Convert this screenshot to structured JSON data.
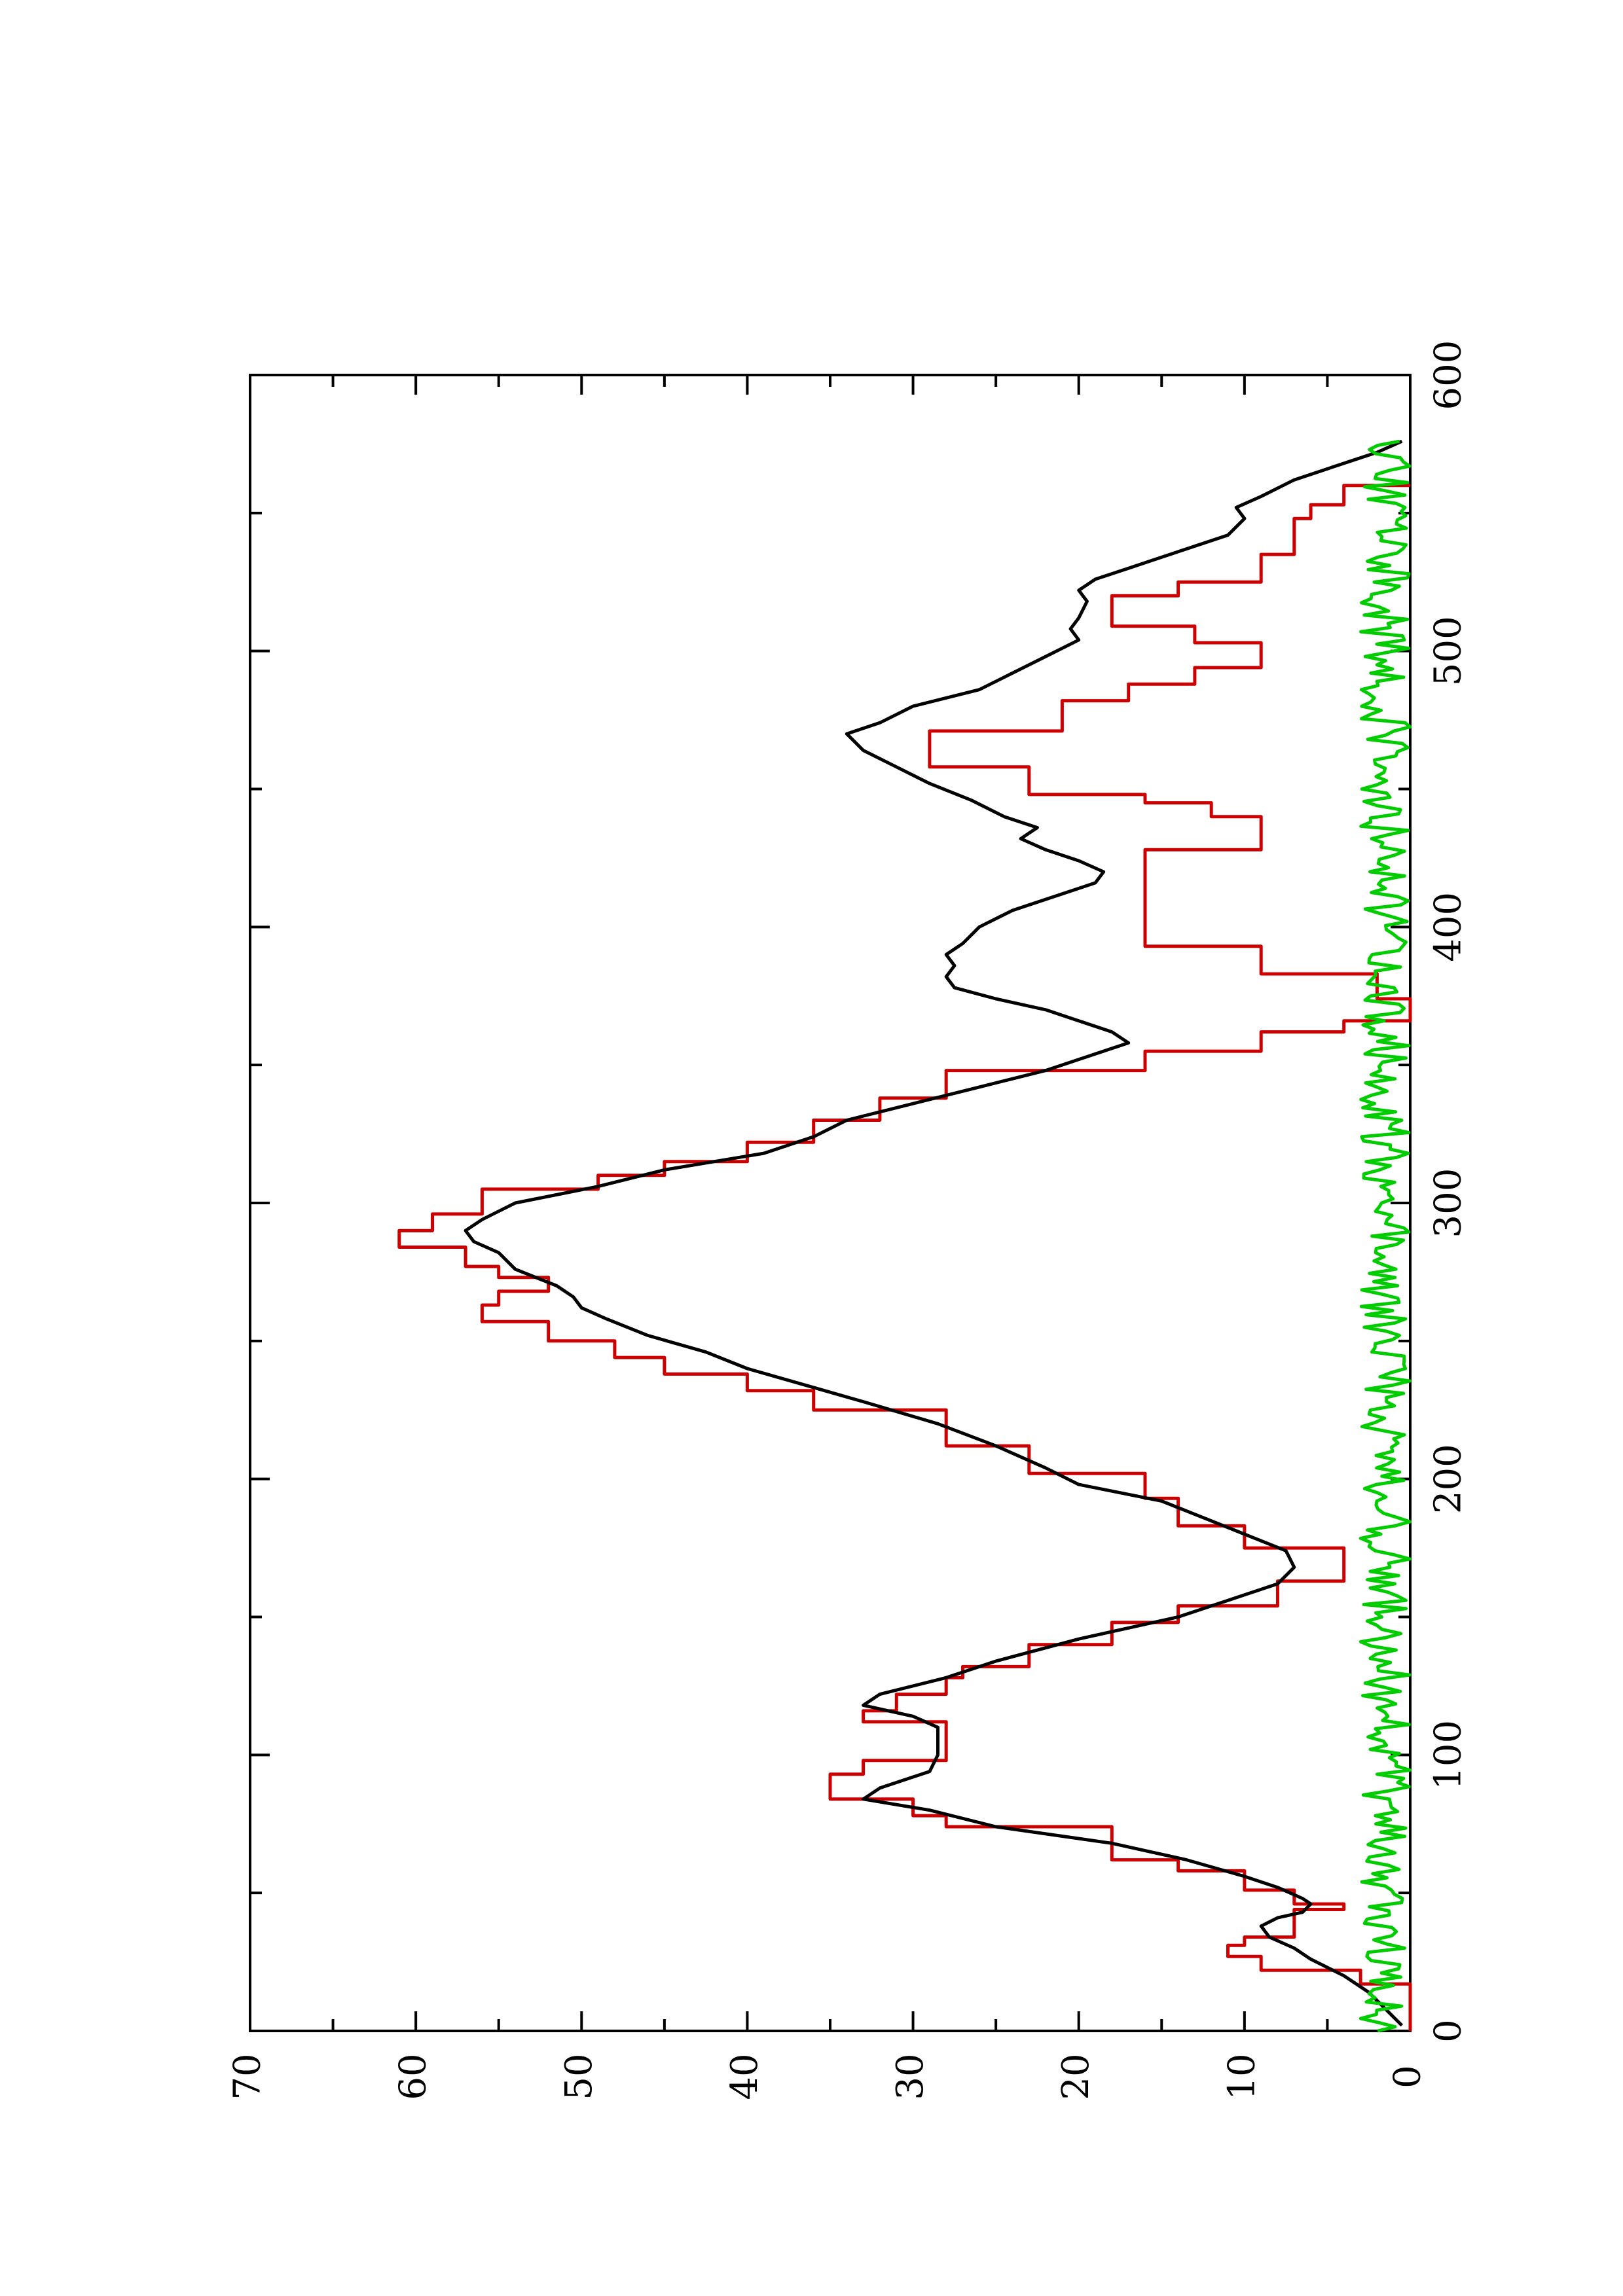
{
  "chart_data": {
    "type": "line",
    "title": "",
    "xlabel": "",
    "ylabel": "",
    "orientation": "rotated-90-ccw",
    "xlim": [
      0,
      600
    ],
    "ylim": [
      0,
      70
    ],
    "x_ticks": [
      0,
      100,
      200,
      300,
      400,
      500,
      600
    ],
    "y_ticks": [
      0,
      10,
      20,
      30,
      40,
      50,
      60,
      70
    ],
    "x_tick_labels": [
      "0",
      "100",
      "200",
      "300",
      "400",
      "500",
      "600"
    ],
    "y_tick_labels": [
      "0",
      "10",
      "20",
      "30",
      "40",
      "50",
      "60",
      "70"
    ],
    "grid": false,
    "legend": "none",
    "series": [
      {
        "color": "#cc0000",
        "style": "step",
        "points": [
          [
            0,
            0
          ],
          [
            17,
            0
          ],
          [
            17,
            3
          ],
          [
            22,
            3
          ],
          [
            22,
            9
          ],
          [
            27,
            9
          ],
          [
            27,
            11
          ],
          [
            31,
            11
          ],
          [
            31,
            10
          ],
          [
            34,
            10
          ],
          [
            34,
            7
          ],
          [
            44,
            7
          ],
          [
            44,
            4
          ],
          [
            46,
            4
          ],
          [
            46,
            7
          ],
          [
            51,
            7
          ],
          [
            51,
            10
          ],
          [
            58,
            10
          ],
          [
            58,
            14
          ],
          [
            62,
            14
          ],
          [
            62,
            18
          ],
          [
            74,
            18
          ],
          [
            74,
            28
          ],
          [
            78,
            28
          ],
          [
            78,
            30
          ],
          [
            84,
            30
          ],
          [
            84,
            35
          ],
          [
            93,
            35
          ],
          [
            93,
            33
          ],
          [
            98,
            33
          ],
          [
            98,
            28
          ],
          [
            112,
            28
          ],
          [
            112,
            33
          ],
          [
            116,
            33
          ],
          [
            116,
            31
          ],
          [
            122,
            31
          ],
          [
            122,
            28
          ],
          [
            128,
            28
          ],
          [
            128,
            27
          ],
          [
            132,
            27
          ],
          [
            132,
            23
          ],
          [
            140,
            23
          ],
          [
            140,
            18
          ],
          [
            148,
            18
          ],
          [
            148,
            14
          ],
          [
            154,
            14
          ],
          [
            154,
            8
          ],
          [
            163,
            8
          ],
          [
            163,
            4
          ],
          [
            175,
            4
          ],
          [
            175,
            10
          ],
          [
            183,
            10
          ],
          [
            183,
            14
          ],
          [
            193,
            14
          ],
          [
            193,
            16
          ],
          [
            202,
            16
          ],
          [
            202,
            23
          ],
          [
            212,
            23
          ],
          [
            212,
            28
          ],
          [
            225,
            28
          ],
          [
            225,
            36
          ],
          [
            232,
            36
          ],
          [
            232,
            40
          ],
          [
            238,
            40
          ],
          [
            238,
            45
          ],
          [
            244,
            45
          ],
          [
            244,
            48
          ],
          [
            250,
            48
          ],
          [
            250,
            52
          ],
          [
            257,
            52
          ],
          [
            257,
            56
          ],
          [
            263,
            56
          ],
          [
            263,
            55
          ],
          [
            268,
            55
          ],
          [
            268,
            52
          ],
          [
            273,
            52
          ],
          [
            273,
            55
          ],
          [
            277,
            55
          ],
          [
            277,
            57
          ],
          [
            284,
            57
          ],
          [
            284,
            61
          ],
          [
            290,
            61
          ],
          [
            290,
            59
          ],
          [
            296,
            59
          ],
          [
            296,
            56
          ],
          [
            305,
            56
          ],
          [
            305,
            49
          ],
          [
            310,
            49
          ],
          [
            310,
            45
          ],
          [
            315,
            45
          ],
          [
            315,
            40
          ],
          [
            322,
            40
          ],
          [
            322,
            36
          ],
          [
            330,
            36
          ],
          [
            330,
            32
          ],
          [
            338,
            32
          ],
          [
            338,
            28
          ],
          [
            348,
            28
          ],
          [
            348,
            16
          ],
          [
            355,
            16
          ],
          [
            355,
            9
          ],
          [
            362,
            9
          ],
          [
            362,
            4
          ],
          [
            366,
            4
          ],
          [
            366,
            0
          ],
          [
            374,
            0
          ],
          [
            374,
            2
          ],
          [
            383,
            2
          ],
          [
            383,
            9
          ],
          [
            393,
            9
          ],
          [
            393,
            16
          ],
          [
            412,
            16
          ],
          [
            412,
            16
          ],
          [
            428,
            16
          ],
          [
            428,
            9
          ],
          [
            440,
            9
          ],
          [
            440,
            12
          ],
          [
            445,
            12
          ],
          [
            445,
            16
          ],
          [
            448,
            16
          ],
          [
            448,
            23
          ],
          [
            458,
            23
          ],
          [
            458,
            29
          ],
          [
            471,
            29
          ],
          [
            471,
            21
          ],
          [
            482,
            21
          ],
          [
            482,
            17
          ],
          [
            488,
            17
          ],
          [
            488,
            13
          ],
          [
            494,
            13
          ],
          [
            494,
            9
          ],
          [
            503,
            9
          ],
          [
            503,
            13
          ],
          [
            509,
            13
          ],
          [
            509,
            18
          ],
          [
            513,
            18
          ],
          [
            513,
            18
          ],
          [
            520,
            18
          ],
          [
            520,
            14
          ],
          [
            525,
            14
          ],
          [
            525,
            9
          ],
          [
            535,
            9
          ],
          [
            535,
            7
          ],
          [
            548,
            7
          ],
          [
            548,
            6
          ],
          [
            553,
            6
          ],
          [
            553,
            4
          ],
          [
            560,
            4
          ],
          [
            560,
            0
          ]
        ]
      },
      {
        "color": "#000000",
        "style": "line",
        "points": [
          [
            2,
            0.5
          ],
          [
            8,
            1.5
          ],
          [
            14,
            2.5
          ],
          [
            20,
            4
          ],
          [
            26,
            6
          ],
          [
            30,
            7
          ],
          [
            34,
            8.5
          ],
          [
            38,
            9
          ],
          [
            41,
            8
          ],
          [
            43,
            6.5
          ],
          [
            46,
            6
          ],
          [
            48,
            6.5
          ],
          [
            52,
            8
          ],
          [
            56,
            10
          ],
          [
            62,
            13.5
          ],
          [
            68,
            18
          ],
          [
            74,
            25
          ],
          [
            80,
            29
          ],
          [
            84,
            33
          ],
          [
            88,
            32
          ],
          [
            94,
            29
          ],
          [
            100,
            28.5
          ],
          [
            110,
            28.5
          ],
          [
            114,
            30
          ],
          [
            118,
            33
          ],
          [
            122,
            32
          ],
          [
            128,
            28
          ],
          [
            134,
            25
          ],
          [
            142,
            20
          ],
          [
            150,
            14
          ],
          [
            156,
            11
          ],
          [
            162,
            8
          ],
          [
            168,
            7
          ],
          [
            174,
            7.5
          ],
          [
            180,
            10
          ],
          [
            186,
            12.5
          ],
          [
            192,
            15
          ],
          [
            198,
            20
          ],
          [
            204,
            22
          ],
          [
            212,
            25
          ],
          [
            220,
            28.5
          ],
          [
            228,
            33
          ],
          [
            234,
            36.5
          ],
          [
            240,
            40
          ],
          [
            246,
            42.5
          ],
          [
            252,
            46
          ],
          [
            258,
            48.5
          ],
          [
            262,
            50
          ],
          [
            266,
            50.5
          ],
          [
            270,
            51.5
          ],
          [
            276,
            54
          ],
          [
            282,
            55
          ],
          [
            286,
            56.5
          ],
          [
            290,
            57
          ],
          [
            294,
            56
          ],
          [
            300,
            54
          ],
          [
            306,
            49
          ],
          [
            312,
            45
          ],
          [
            318,
            39
          ],
          [
            324,
            36
          ],
          [
            330,
            34
          ],
          [
            336,
            30
          ],
          [
            342,
            26
          ],
          [
            348,
            22
          ],
          [
            354,
            19
          ],
          [
            358,
            17
          ],
          [
            362,
            18
          ],
          [
            366,
            20
          ],
          [
            370,
            22
          ],
          [
            374,
            25
          ],
          [
            378,
            27.5
          ],
          [
            382,
            28
          ],
          [
            386,
            27.5
          ],
          [
            390,
            28
          ],
          [
            394,
            27
          ],
          [
            400,
            26
          ],
          [
            406,
            24
          ],
          [
            412,
            21
          ],
          [
            416,
            19
          ],
          [
            420,
            18.5
          ],
          [
            424,
            20
          ],
          [
            428,
            22
          ],
          [
            432,
            23.5
          ],
          [
            436,
            22.5
          ],
          [
            440,
            24.5
          ],
          [
            446,
            26.5
          ],
          [
            452,
            29
          ],
          [
            458,
            31
          ],
          [
            464,
            33
          ],
          [
            470,
            34
          ],
          [
            474,
            32
          ],
          [
            480,
            30
          ],
          [
            486,
            26
          ],
          [
            492,
            24
          ],
          [
            498,
            22
          ],
          [
            504,
            20
          ],
          [
            508,
            20.5
          ],
          [
            512,
            20
          ],
          [
            518,
            19.5
          ],
          [
            522,
            20
          ],
          [
            526,
            19
          ],
          [
            530,
            17
          ],
          [
            536,
            14
          ],
          [
            542,
            11
          ],
          [
            548,
            10
          ],
          [
            552,
            10.5
          ],
          [
            556,
            9
          ],
          [
            562,
            7
          ],
          [
            568,
            4
          ],
          [
            572,
            2
          ],
          [
            576,
            0.5
          ]
        ]
      },
      {
        "color": "#00cc00",
        "style": "noisy-line",
        "mean": 1.5,
        "range": [
          0,
          4
        ],
        "x_range": [
          0,
          576
        ]
      }
    ]
  }
}
